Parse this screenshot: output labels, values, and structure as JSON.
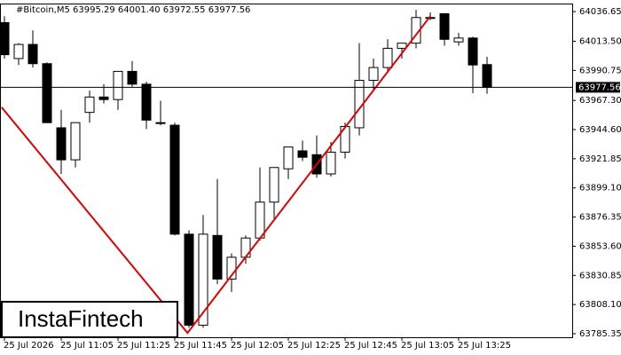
{
  "chart_data": {
    "type": "candlestick",
    "title": "#Bitcoin,M5  63995.29 64001.40 63972.55 63977.56",
    "watermark": "InstaFintech",
    "categories": [
      "25 Jul 2026",
      null,
      null,
      null,
      "25 Jul 11:05",
      null,
      null,
      null,
      "25 Jul 11:25",
      null,
      null,
      null,
      "25 Jul 11:45",
      null,
      null,
      null,
      "25 Jul 12:05",
      null,
      null,
      null,
      "25 Jul 12:25",
      null,
      null,
      null,
      "25 Jul 12:45",
      null,
      null,
      null,
      "25 Jul 13:05",
      null,
      null,
      null,
      "25 Jul 13:25",
      null,
      null
    ],
    "open": [
      64028,
      64000,
      64011,
      63996,
      63946,
      63921,
      63958,
      63970,
      63968,
      63990,
      63980,
      63950,
      63948,
      63863,
      63792,
      63862,
      63828,
      63845,
      63860,
      63888,
      63914,
      63928,
      63925,
      63910,
      63927,
      63946,
      63983,
      63993,
      64008,
      64012,
      64032,
      64035,
      64013,
      64016,
      63995.29
    ],
    "high": [
      64033,
      64012,
      64022,
      63997,
      63960,
      63950,
      63975,
      63980,
      63990,
      63998,
      63982,
      63967,
      63950,
      63866,
      63878,
      63906,
      63848,
      63862,
      63915,
      63915,
      63931,
      63936,
      63940,
      63935,
      63950,
      64012,
      64000,
      64015,
      64012,
      64038,
      64036,
      64035,
      64020,
      64017,
      64001.4
    ],
    "low": [
      64000,
      63995,
      63993,
      63950,
      63910,
      63915,
      63950,
      63965,
      63960,
      63978,
      63945,
      63948,
      63862,
      63790,
      63790,
      63824,
      63818,
      63840,
      63858,
      63875,
      63906,
      63920,
      63907,
      63908,
      63922,
      63940,
      63975,
      63990,
      64000,
      64008,
      64030,
      64010,
      64010,
      63973,
      63972.55
    ],
    "close": [
      64003,
      64011,
      63996,
      63950,
      63921,
      63950,
      63970,
      63968,
      63990,
      63980,
      63952,
      63950,
      63863,
      63792,
      63863,
      63828,
      63845,
      63860,
      63888,
      63915,
      63931,
      63923,
      63910,
      63927,
      63947,
      63983,
      63993,
      64008,
      64012,
      64032,
      64032,
      64015,
      64016,
      63995,
      63977.56
    ],
    "up_color": "#ffffff",
    "down_color": "#000000",
    "current_price": 63977.56,
    "trend_line": {
      "color": "#e00000",
      "points": [
        {
          "x": -0.2,
          "y": 63962
        },
        {
          "x": 12.9,
          "y": 63786
        },
        {
          "x": 30,
          "y": 64033
        }
      ]
    },
    "ylim": [
      63782.6,
      64042.9
    ],
    "yticks": [
      64036.65,
      {
        "value": 64013.5,
        "label": "64013.50"
      },
      63990.75,
      {
        "value": 63967.3,
        "label": "63967.30"
      },
      {
        "value": 63944.6,
        "label": "63944.60"
      },
      63921.85,
      {
        "value": 63899.1,
        "label": "63899.10"
      },
      63876.35,
      {
        "value": 63853.6,
        "label": "63853.60"
      },
      63830.85,
      {
        "value": 63808.1,
        "label": "63808.10"
      },
      63785.35
    ]
  }
}
